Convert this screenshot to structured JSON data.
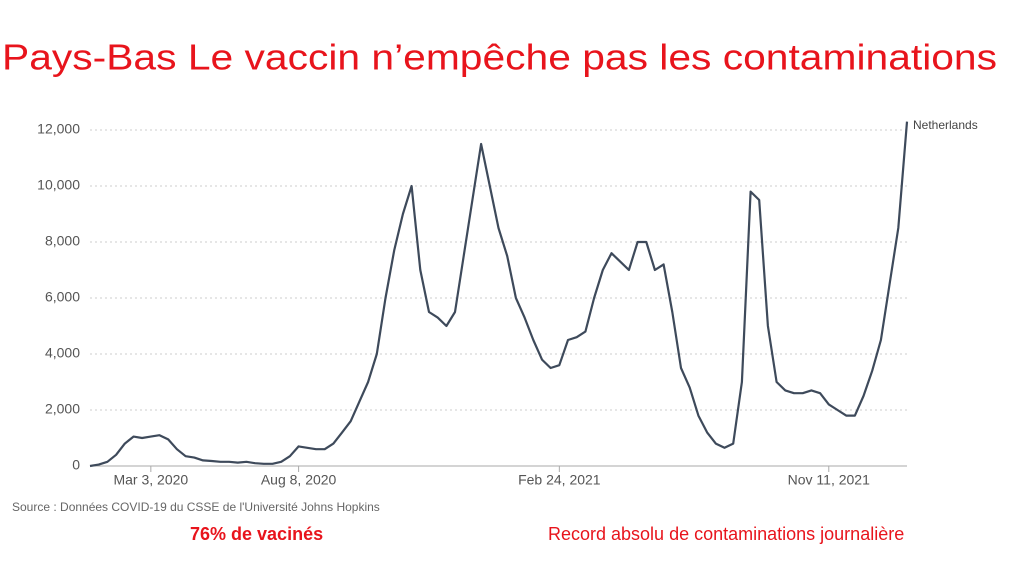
{
  "chart_data": {
    "type": "line",
    "title": "Pays-Bas Le vaccin n’empêche pas les contaminations",
    "series_label": "Netherlands",
    "source": "Source : Données COVID-19 du CSSE de l'Université Johns Hopkins",
    "annotations": [
      "76% de vacinés",
      "Record absolu de contaminations journalière"
    ],
    "color": "#3e4a5b",
    "grid": true,
    "ylim": [
      0,
      12000
    ],
    "yticks": [
      0,
      {
        "value": 2000,
        "label": "2,000"
      },
      {
        "value": 4000,
        "label": "4,000"
      },
      {
        "value": 6000,
        "label": "6,000"
      },
      {
        "value": 8000,
        "label": "8,000"
      },
      {
        "value": 10000,
        "label": "10,000"
      },
      {
        "value": 12000,
        "label": "12,000"
      }
    ],
    "categories": [
      null,
      null,
      null,
      null,
      null,
      null,
      null,
      "Mar 3, 2020",
      null,
      null,
      null,
      null,
      null,
      null,
      null,
      null,
      null,
      null,
      null,
      null,
      null,
      null,
      null,
      null,
      "Aug 8, 2020",
      null,
      null,
      null,
      null,
      null,
      null,
      null,
      null,
      null,
      null,
      null,
      null,
      null,
      null,
      null,
      null,
      null,
      null,
      null,
      null,
      null,
      null,
      null,
      null,
      null,
      null,
      null,
      null,
      null,
      "Feb 24, 2021",
      null,
      null,
      null,
      null,
      null,
      null,
      null,
      null,
      null,
      null,
      null,
      null,
      null,
      null,
      null,
      null,
      null,
      null,
      null,
      null,
      null,
      null,
      null,
      null,
      null,
      null,
      null,
      null,
      null,
      null,
      "Nov 11, 2021",
      null,
      null,
      null,
      null,
      null,
      null,
      null,
      null,
      null
    ],
    "values": [
      0,
      50,
      150,
      400,
      800,
      1050,
      1000,
      1050,
      1100,
      950,
      600,
      350,
      300,
      200,
      180,
      150,
      150,
      120,
      150,
      100,
      80,
      80,
      150,
      350,
      700,
      650,
      600,
      600,
      800,
      1200,
      1600,
      2300,
      3000,
      4000,
      6000,
      7700,
      9000,
      10000,
      7000,
      5500,
      5300,
      5000,
      5500,
      7500,
      9500,
      11500,
      10000,
      8500,
      7500,
      6000,
      5300,
      4500,
      3800,
      3500,
      3600,
      4500,
      4600,
      4800,
      6000,
      7000,
      7600,
      7300,
      7000,
      8000,
      8000,
      7000,
      7200,
      5500,
      3500,
      2800,
      1800,
      1200,
      800,
      650,
      800,
      3000,
      9800,
      9500,
      5000,
      3000,
      2700,
      2600,
      2600,
      2700,
      2600,
      2200,
      2000,
      1800,
      1800,
      2500,
      3400,
      4500,
      6500,
      8500,
      12300
    ]
  }
}
